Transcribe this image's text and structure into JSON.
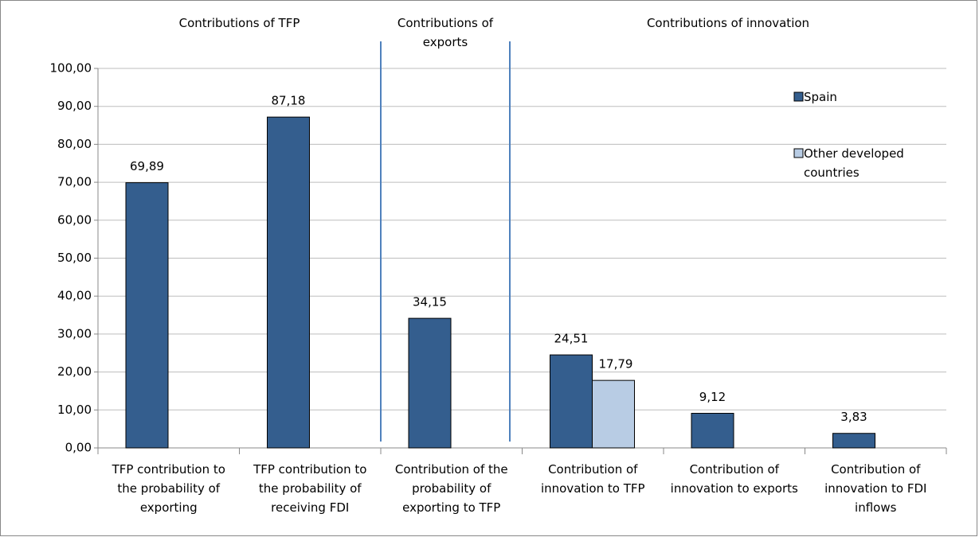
{
  "chart_data": {
    "type": "bar",
    "annotations": [
      "Contributions of TFP",
      "Contributions of exports",
      "Contributions of innovation"
    ],
    "categories": [
      "TFP contribution to the probability of exporting",
      "TFP contribution to the probability of receiving FDI",
      "Contribution of the probability of exporting to TFP",
      "Contribution of innovation to TFP",
      "Contribution of innovation to exports",
      "Contribution of innovation to FDI inflows"
    ],
    "series": [
      {
        "name": "Spain",
        "color": "#345e8e",
        "values": [
          69.89,
          87.18,
          34.15,
          24.51,
          9.12,
          3.83
        ],
        "value_labels": [
          "69,89",
          "87,18",
          "34,15",
          "24,51",
          "9,12",
          "3,83"
        ]
      },
      {
        "name": "Other developed countries",
        "color": "#b8cce4",
        "values": [
          null,
          null,
          null,
          17.79,
          null,
          null
        ],
        "value_labels": [
          null,
          null,
          null,
          "17,79",
          null,
          null
        ]
      }
    ],
    "ylim": [
      0,
      100
    ],
    "yticks": [
      {
        "value": 0,
        "label": "0,00"
      },
      {
        "value": 10,
        "label": "10,00"
      },
      {
        "value": 20,
        "label": "20,00"
      },
      {
        "value": 30,
        "label": "30,00"
      },
      {
        "value": 40,
        "label": "40,00"
      },
      {
        "value": 50,
        "label": "50,00"
      },
      {
        "value": 60,
        "label": "60,00"
      },
      {
        "value": 70,
        "label": "70,00"
      },
      {
        "value": 80,
        "label": "80,00"
      },
      {
        "value": 90,
        "label": "90,00"
      },
      {
        "value": 100,
        "label": "100,00"
      }
    ],
    "grid": true,
    "legend": "upper right"
  }
}
